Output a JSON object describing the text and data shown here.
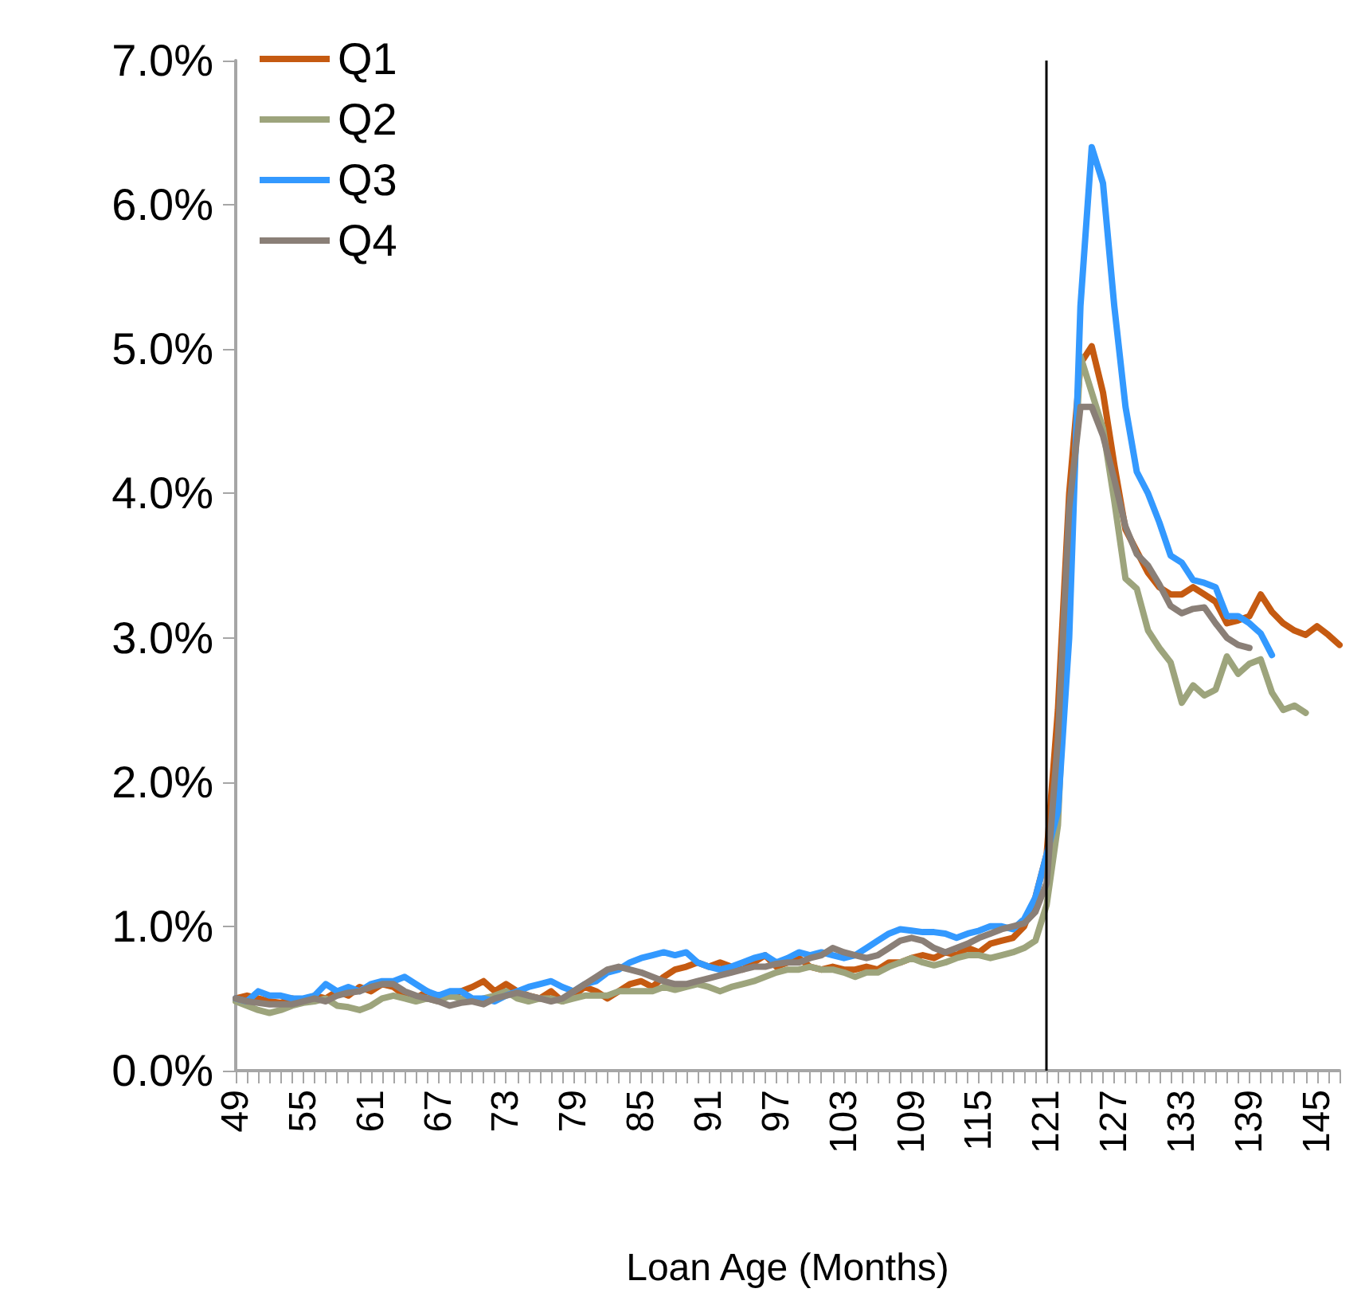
{
  "chart_data": {
    "type": "line",
    "xlabel": "Loan Age (Months)",
    "categories": [
      "49",
      null,
      null,
      null,
      null,
      null,
      "55",
      null,
      null,
      null,
      null,
      null,
      "61",
      null,
      null,
      null,
      null,
      null,
      "67",
      null,
      null,
      null,
      null,
      null,
      "73",
      null,
      null,
      null,
      null,
      null,
      "79",
      null,
      null,
      null,
      null,
      null,
      "85",
      null,
      null,
      null,
      null,
      null,
      "91",
      null,
      null,
      null,
      null,
      null,
      "97",
      null,
      null,
      null,
      null,
      null,
      "103",
      null,
      null,
      null,
      null,
      null,
      "109",
      null,
      null,
      null,
      null,
      null,
      "115",
      null,
      null,
      null,
      null,
      null,
      "121",
      null,
      null,
      null,
      null,
      null,
      "127",
      null,
      null,
      null,
      null,
      null,
      "133",
      null,
      null,
      null,
      null,
      null,
      "139",
      null,
      null,
      null,
      null,
      null,
      "145",
      null,
      null
    ],
    "series": [
      {
        "name": "Q1",
        "color": "#c55a11",
        "values": [
          0.5,
          0.52,
          0.5,
          0.48,
          0.47,
          0.5,
          0.48,
          0.52,
          0.5,
          0.55,
          0.52,
          0.58,
          0.55,
          0.6,
          0.58,
          0.52,
          0.5,
          0.55,
          0.5,
          0.52,
          0.55,
          0.58,
          0.62,
          0.55,
          0.6,
          0.55,
          0.52,
          0.5,
          0.55,
          0.48,
          0.52,
          0.58,
          0.55,
          0.5,
          0.55,
          0.6,
          0.62,
          0.58,
          0.65,
          0.7,
          0.72,
          0.75,
          0.72,
          0.75,
          0.72,
          0.7,
          0.75,
          0.8,
          0.72,
          0.75,
          0.78,
          0.72,
          0.7,
          0.72,
          0.7,
          0.7,
          0.72,
          0.7,
          0.75,
          0.75,
          0.78,
          0.8,
          0.78,
          0.82,
          0.8,
          0.85,
          0.82,
          0.88,
          0.9,
          0.92,
          1.0,
          1.2,
          1.5,
          2.5,
          4.0,
          4.9,
          5.02,
          4.7,
          4.2,
          3.75,
          3.6,
          3.45,
          3.35,
          3.3,
          3.3,
          3.35,
          3.3,
          3.25,
          3.1,
          3.12,
          3.15,
          3.3,
          3.18,
          3.1,
          3.05,
          3.02,
          3.08,
          3.02,
          2.95
        ]
      },
      {
        "name": "Q2",
        "color": "#9da47c",
        "values": [
          0.48,
          0.45,
          0.42,
          0.4,
          0.42,
          0.45,
          0.47,
          0.48,
          0.5,
          0.45,
          0.44,
          0.42,
          0.45,
          0.5,
          0.52,
          0.5,
          0.48,
          0.5,
          0.48,
          0.52,
          0.5,
          0.48,
          0.5,
          0.52,
          0.55,
          0.5,
          0.48,
          0.5,
          0.5,
          0.48,
          0.5,
          0.52,
          0.52,
          0.52,
          0.55,
          0.55,
          0.55,
          0.55,
          0.58,
          0.56,
          0.58,
          0.6,
          0.58,
          0.55,
          0.58,
          0.6,
          0.62,
          0.65,
          0.68,
          0.7,
          0.7,
          0.72,
          0.7,
          0.7,
          0.68,
          0.65,
          0.68,
          0.68,
          0.72,
          0.75,
          0.78,
          0.75,
          0.73,
          0.75,
          0.78,
          0.8,
          0.8,
          0.78,
          0.8,
          0.82,
          0.85,
          0.9,
          1.15,
          1.7,
          3.5,
          4.95,
          4.7,
          4.45,
          3.95,
          3.41,
          3.34,
          3.05,
          2.93,
          2.83,
          2.55,
          2.67,
          2.6,
          2.64,
          2.87,
          2.75,
          2.82,
          2.85,
          2.62,
          2.5,
          2.53,
          2.48,
          null,
          null,
          null
        ]
      },
      {
        "name": "Q3",
        "color": "#3399ff",
        "values": [
          0.5,
          0.48,
          0.55,
          0.52,
          0.52,
          0.5,
          0.5,
          0.52,
          0.6,
          0.55,
          0.58,
          0.55,
          0.6,
          0.62,
          0.62,
          0.65,
          0.6,
          0.55,
          0.52,
          0.55,
          0.55,
          0.5,
          0.5,
          0.48,
          0.52,
          0.55,
          0.58,
          0.6,
          0.62,
          0.58,
          0.55,
          0.6,
          0.62,
          0.68,
          0.7,
          0.75,
          0.78,
          0.8,
          0.82,
          0.8,
          0.82,
          0.75,
          0.72,
          0.7,
          0.72,
          0.75,
          0.78,
          0.8,
          0.75,
          0.78,
          0.82,
          0.8,
          0.82,
          0.8,
          0.78,
          0.8,
          0.85,
          0.9,
          0.95,
          0.98,
          0.97,
          0.96,
          0.96,
          0.95,
          0.92,
          0.95,
          0.97,
          1.0,
          1.0,
          0.98,
          1.05,
          1.2,
          1.5,
          1.8,
          3.0,
          5.3,
          6.4,
          6.15,
          5.3,
          4.6,
          4.15,
          4.0,
          3.8,
          3.57,
          3.52,
          3.4,
          3.38,
          3.35,
          3.15,
          3.15,
          3.1,
          3.03,
          2.88,
          null,
          null,
          null,
          null,
          null,
          null
        ]
      },
      {
        "name": "Q4",
        "color": "#8a7f77",
        "values": [
          0.5,
          0.48,
          0.47,
          0.46,
          0.46,
          0.46,
          0.48,
          0.5,
          0.48,
          0.52,
          0.54,
          0.55,
          0.58,
          0.6,
          0.6,
          0.55,
          0.52,
          0.5,
          0.48,
          0.45,
          0.47,
          0.48,
          0.46,
          0.5,
          0.52,
          0.54,
          0.52,
          0.5,
          0.48,
          0.5,
          0.55,
          0.6,
          0.65,
          0.7,
          0.72,
          0.7,
          0.68,
          0.65,
          0.62,
          0.6,
          0.6,
          0.62,
          0.64,
          0.66,
          0.68,
          0.7,
          0.72,
          0.72,
          0.74,
          0.75,
          0.75,
          0.78,
          0.8,
          0.85,
          0.82,
          0.8,
          0.78,
          0.8,
          0.85,
          0.9,
          0.92,
          0.9,
          0.85,
          0.82,
          0.85,
          0.88,
          0.92,
          0.95,
          0.98,
          1.0,
          1.02,
          1.1,
          1.3,
          2.3,
          3.9,
          4.6,
          4.6,
          4.4,
          4.1,
          3.77,
          3.58,
          3.5,
          3.37,
          3.22,
          3.17,
          3.2,
          3.21,
          3.1,
          3.0,
          2.95,
          2.93,
          null,
          null,
          null,
          null,
          null,
          null,
          null,
          null
        ]
      }
    ],
    "ylim": [
      0,
      7
    ],
    "yticks": [
      {
        "value": 0,
        "label": "0.0%"
      },
      {
        "value": 1,
        "label": "1.0%"
      },
      {
        "value": 2,
        "label": "2.0%"
      },
      {
        "value": 3,
        "label": "3.0%"
      },
      {
        "value": 4,
        "label": "4.0%"
      },
      {
        "value": 5,
        "label": "5.0%"
      },
      {
        "value": 6,
        "label": "6.0%"
      },
      {
        "value": 7,
        "label": "7.0%"
      }
    ],
    "ref_lines": [
      {
        "axis": "x",
        "value": "121",
        "color": "#000000"
      }
    ],
    "legend": "top left",
    "grid": false,
    "marker": "none",
    "line_style": "solid"
  }
}
